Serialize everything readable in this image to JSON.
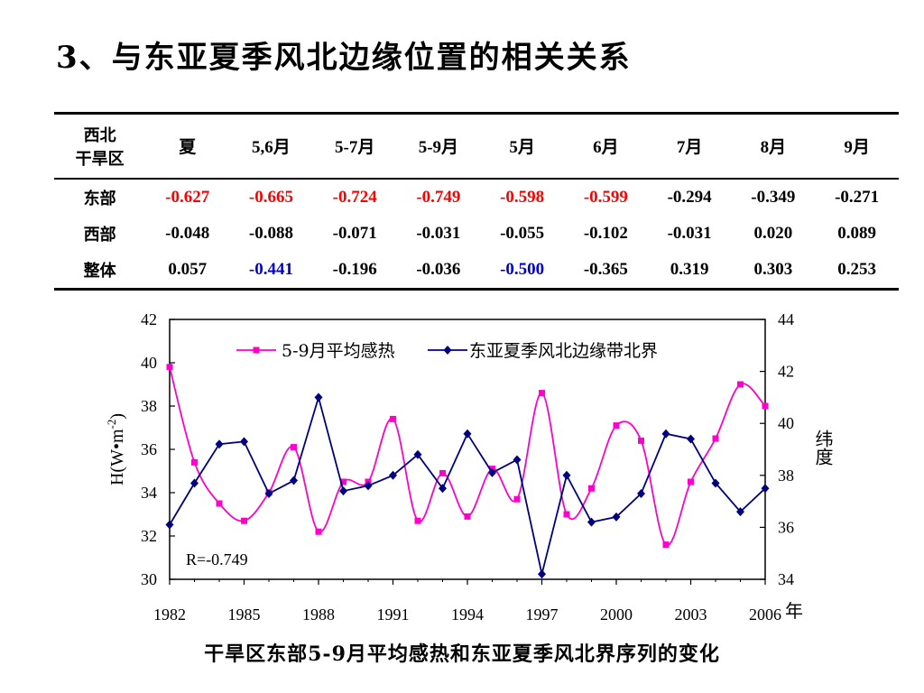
{
  "slide": {
    "title": "3、与东亚夏季风北边缘位置的相关关系",
    "caption": "干旱区东部5-9月平均感热和东亚夏季风北界序列的变化"
  },
  "table": {
    "corner": [
      "西北",
      "干旱区"
    ],
    "columns": [
      "夏",
      "5,6月",
      "5-7月",
      "5-9月",
      "5月",
      "6月",
      "7月",
      "8月",
      "9月"
    ],
    "rows": [
      {
        "label": "东部",
        "values": [
          "-0.627",
          "-0.665",
          "-0.724",
          "-0.749",
          "-0.598",
          "-0.599",
          "-0.294",
          "-0.349",
          "-0.271"
        ],
        "highlight": [
          "red",
          "red",
          "red",
          "red",
          "red",
          "red",
          "",
          "",
          ""
        ]
      },
      {
        "label": "西部",
        "values": [
          "-0.048",
          "-0.088",
          "-0.071",
          "-0.031",
          "-0.055",
          "-0.102",
          "-0.031",
          "0.020",
          "0.089"
        ],
        "highlight": [
          "",
          "",
          "",
          "",
          "",
          "",
          "",
          "",
          ""
        ]
      },
      {
        "label": "整体",
        "values": [
          "0.057",
          "-0.441",
          "-0.196",
          "-0.036",
          "-0.500",
          "-0.365",
          "0.319",
          "0.303",
          "0.253"
        ],
        "highlight": [
          "",
          "blue",
          "",
          "",
          "blue",
          "",
          "",
          "",
          ""
        ]
      }
    ]
  },
  "chart_data": {
    "type": "line",
    "ylabel": "H(W•m-2)",
    "ylabel_parts": {
      "base": "H(W•m",
      "sup": "-2",
      "close": ")"
    },
    "y2label": "纬度",
    "xunit": "年",
    "annotation": "R=-0.749",
    "legend_position": "top-center",
    "grid": false,
    "xlim": [
      1982,
      2006
    ],
    "ylim": [
      30,
      42
    ],
    "y2lim": [
      34,
      44
    ],
    "xticks": [
      1982,
      1985,
      1988,
      1991,
      1994,
      1997,
      2000,
      2003,
      2006
    ],
    "yticks": [
      30,
      32,
      34,
      36,
      38,
      40,
      42
    ],
    "y2ticks": [
      34,
      36,
      38,
      40,
      42,
      44
    ],
    "x": [
      1982,
      1983,
      1984,
      1985,
      1986,
      1987,
      1988,
      1989,
      1990,
      1991,
      1992,
      1993,
      1994,
      1995,
      1996,
      1997,
      1998,
      1999,
      2000,
      2001,
      2002,
      2003,
      2004,
      2005,
      2006
    ],
    "series": [
      {
        "name": "5-9月平均感热",
        "axis": "left",
        "color": "#ff00cc",
        "marker": "square",
        "values": [
          39.8,
          35.4,
          33.5,
          32.7,
          34.0,
          36.1,
          32.2,
          34.5,
          34.5,
          37.4,
          32.7,
          34.9,
          32.9,
          35.1,
          33.7,
          38.6,
          33.0,
          34.2,
          37.1,
          36.4,
          31.6,
          34.5,
          36.5,
          39.0,
          38.0
        ],
        "smooth": true
      },
      {
        "name": "东亚夏季风北边缘带北界",
        "axis": "right",
        "color": "#000080",
        "marker": "diamond",
        "values": [
          36.1,
          37.7,
          39.2,
          39.3,
          37.3,
          37.8,
          41.0,
          37.4,
          37.6,
          38.0,
          38.8,
          37.5,
          39.6,
          38.1,
          38.6,
          34.2,
          38.0,
          36.2,
          36.4,
          37.3,
          39.6,
          39.4,
          37.7,
          36.6,
          37.5
        ],
        "smooth": false
      }
    ]
  },
  "colors": {
    "red": "#ff0000",
    "blue": "#0000cc"
  }
}
